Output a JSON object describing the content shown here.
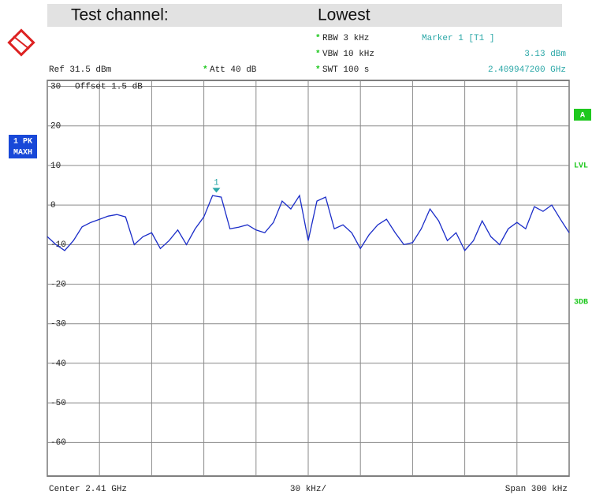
{
  "header": {
    "label": "Test channel:",
    "channel": "Lowest"
  },
  "settings": {
    "star": "*",
    "rbw": "RBW 3 kHz",
    "vbw": "VBW 10 kHz",
    "swt": "SWT 100 s",
    "ref": "Ref  31.5 dBm",
    "att": "Att  40 dB",
    "offset": "Offset  1.5 dB"
  },
  "side": {
    "trace_line1": "1 PK",
    "trace_line2": "MAXH",
    "a": "A",
    "lvl": "LVL",
    "db3": "3DB"
  },
  "footer": {
    "center": "Center 2.41 GHz",
    "div": "30 kHz/",
    "span": "Span 300 kHz"
  },
  "chart_data": {
    "type": "line",
    "x": [
      2.40985,
      2.409855,
      2.40986,
      2.409865,
      2.40987,
      2.409875,
      2.40988,
      2.409885,
      2.40989,
      2.409895,
      2.4099,
      2.409905,
      2.40991,
      2.409915,
      2.40992,
      2.409925,
      2.40993,
      2.409935,
      2.40994,
      2.409945,
      2.40995,
      2.409955,
      2.40996,
      2.409965,
      2.40997,
      2.409975,
      2.40998,
      2.409985,
      2.40999,
      2.409995,
      2.41,
      2.410005,
      2.41001,
      2.410015,
      2.41002,
      2.410025,
      2.41003,
      2.410035,
      2.41004,
      2.410045,
      2.41005,
      2.410055,
      2.41006,
      2.410065,
      2.41007,
      2.410075,
      2.41008,
      2.410085,
      2.41009,
      2.410095,
      2.4101,
      2.410105,
      2.41011,
      2.410115,
      2.41012,
      2.410125,
      2.41013,
      2.410135,
      2.41014,
      2.410145,
      2.41015
    ],
    "series": [
      {
        "name": "1 PK MAXH",
        "color": "#1a2cc8",
        "values": [
          -8,
          -10,
          -11.5,
          -9,
          -5.5,
          -4.4,
          -3.6,
          -2.8,
          -2.4,
          -3,
          -10,
          -8,
          -7,
          -11,
          -9,
          -6.3,
          -10,
          -6,
          -3,
          2.4,
          2,
          -6,
          -5.6,
          -5,
          -6.3,
          -7,
          -4.4,
          1,
          -1,
          2.4,
          -9,
          1,
          2,
          -6,
          -5,
          -7,
          -11,
          -7.5,
          -5,
          -3.6,
          -7,
          -10,
          -9.5,
          -6,
          -1,
          -4,
          -9,
          -7,
          -11.5,
          -9,
          -4,
          -8,
          -10,
          -6,
          -4.4,
          -6,
          -0.4,
          -1.6,
          0,
          -3.6,
          -7
        ]
      }
    ],
    "marker": {
      "label": "1",
      "x": 2.4099472,
      "y": 3.13,
      "header": "Marker 1 [T1 ]",
      "value_label": "3.13 dBm",
      "x_label": "2.409947200 GHz"
    },
    "xlim": [
      2.40985,
      2.41015
    ],
    "xticks": [
      2.40985,
      2.40988,
      2.40991,
      2.40994,
      2.40997,
      2.41,
      2.41003,
      2.41006,
      2.41009,
      2.41012,
      2.41015
    ],
    "ylim": [
      -68.5,
      31.5
    ],
    "yticks": [
      30,
      20,
      10,
      0,
      -10,
      -20,
      -30,
      -40,
      -50,
      -60
    ],
    "grid": true
  }
}
